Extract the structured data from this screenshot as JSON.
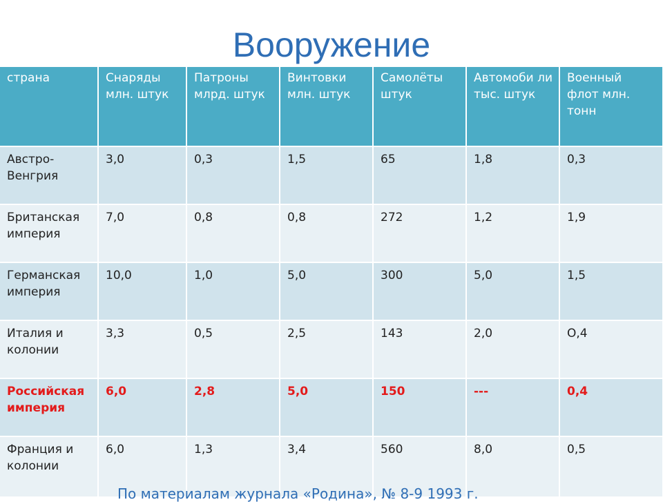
{
  "title": "Вооружение",
  "headers": [
    "страна",
    "Снаряды млн. штук",
    "Патроны млрд. штук",
    "Винтовки млн. штук",
    "Самолёты штук",
    "Автомоби ли тыс. штук",
    "Военный флот млн. тонн"
  ],
  "rows": [
    [
      "Австро-Венгрия",
      "3,0",
      "0,3",
      "1,5",
      "65",
      "1,8",
      "0,3"
    ],
    [
      "Британская империя",
      "7,0",
      "0,8",
      "0,8",
      "272",
      "1,2",
      "1,9"
    ],
    [
      "Германская империя",
      "10,0",
      "1,0",
      "5,0",
      "300",
      "5,0",
      "1,5"
    ],
    [
      "Италия и колонии",
      "3,3",
      "0,5",
      "2,5",
      "143",
      "2,0",
      "О,4"
    ],
    [
      "Российская империя",
      "6,0",
      "2,8",
      "5,0",
      "150",
      "---",
      "0,4"
    ],
    [
      "Франция и колонии",
      "6,0",
      "1,3",
      "3,4",
      "560",
      "8,0",
      "0,5"
    ]
  ],
  "highlight_row_color": "#e31b1b",
  "header_color": "#4bacc6",
  "source_note": "По материалам журнала «Родина», № 8-9 1993 г."
}
